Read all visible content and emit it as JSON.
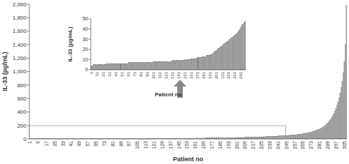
{
  "chart_data": [
    {
      "type": "bar",
      "y_label": "IL-33 (pg/mL)",
      "x_label": "Patient no",
      "color": "#a0a0a0",
      "ylim": [
        0,
        2000
      ],
      "yticks": [
        0,
        200,
        400,
        600,
        800,
        {
          "value": 1000,
          "label": "1,000"
        },
        {
          "value": 1200,
          "label": "1,200"
        },
        {
          "value": 1400,
          "label": "1,400"
        },
        {
          "value": 1600,
          "label": "1,600"
        },
        {
          "value": 1800,
          "label": "1,800"
        },
        {
          "value": 2000,
          "label": "2,000"
        }
      ],
      "grid": false,
      "categories": [
        "1",
        null,
        null,
        null,
        null,
        null,
        null,
        null,
        "9",
        null,
        null,
        null,
        null,
        null,
        null,
        null,
        "17",
        null,
        null,
        null,
        null,
        null,
        null,
        null,
        "25",
        null,
        null,
        null,
        null,
        null,
        null,
        null,
        "33",
        null,
        null,
        null,
        null,
        null,
        null,
        null,
        "41",
        null,
        null,
        null,
        null,
        null,
        null,
        null,
        "49",
        null,
        null,
        null,
        null,
        null,
        null,
        null,
        "57",
        null,
        null,
        null,
        null,
        null,
        null,
        null,
        "65",
        null,
        null,
        null,
        null,
        null,
        null,
        null,
        "73",
        null,
        null,
        null,
        null,
        null,
        null,
        null,
        "81",
        null,
        null,
        null,
        null,
        null,
        null,
        null,
        "89",
        null,
        null,
        null,
        null,
        null,
        null,
        null,
        "97",
        null,
        null,
        null,
        null,
        null,
        null,
        null,
        "105",
        null,
        null,
        null,
        null,
        null,
        null,
        null,
        "113",
        null,
        null,
        null,
        null,
        null,
        null,
        null,
        "121",
        null,
        null,
        null,
        null,
        null,
        null,
        null,
        "129",
        null,
        null,
        null,
        null,
        null,
        null,
        null,
        "137",
        null,
        null,
        null,
        null,
        null,
        null,
        null,
        "145",
        null,
        null,
        null,
        null,
        null,
        null,
        null,
        "153",
        null,
        null,
        null,
        null,
        null,
        null,
        null,
        "161",
        null,
        null,
        null,
        null,
        null,
        null,
        null,
        "169",
        null,
        null,
        null,
        null,
        null,
        null,
        null,
        "177",
        null,
        null,
        null,
        null,
        null,
        null,
        null,
        "185",
        null,
        null,
        null,
        null,
        null,
        null,
        null,
        "193",
        null,
        null,
        null,
        null,
        null,
        null,
        null,
        "201",
        null,
        null,
        null,
        null,
        null,
        null,
        null,
        "209",
        null,
        null,
        null,
        null,
        null,
        null,
        null,
        "217",
        null,
        null,
        null,
        null,
        null,
        null,
        null,
        "225",
        null,
        null,
        null,
        null,
        null,
        null,
        null,
        "233",
        null,
        null,
        null,
        null,
        null,
        null,
        null,
        "241",
        null,
        null,
        null,
        null,
        null,
        null,
        null,
        "249",
        null,
        null,
        null,
        null,
        null,
        null,
        null,
        "257",
        null,
        null,
        null,
        null,
        null,
        null,
        null,
        "265",
        null,
        null,
        null,
        null,
        null,
        null,
        null,
        "273",
        null,
        null,
        null,
        null,
        null,
        null,
        null,
        "281",
        null,
        null,
        null,
        null,
        null,
        null,
        null,
        "289",
        null,
        null,
        null,
        null,
        null,
        null,
        null,
        "297",
        null,
        null,
        null,
        null,
        null,
        null,
        null,
        "305",
        null,
        null
      ],
      "values": [
        4,
        4,
        4,
        4,
        5,
        5,
        5,
        5,
        5,
        5,
        5,
        5,
        5,
        5,
        5,
        5,
        5,
        5,
        5,
        5,
        5,
        5,
        5,
        5,
        5,
        6,
        6,
        6,
        6,
        6,
        6,
        6,
        6,
        6,
        6,
        6,
        6,
        6,
        6,
        6,
        6,
        6,
        6,
        6,
        6,
        6,
        6,
        6,
        6,
        6,
        6,
        6,
        6,
        6,
        6,
        6,
        6,
        6,
        6,
        6,
        7,
        7,
        7,
        7,
        7,
        7,
        7,
        7,
        7,
        7,
        7,
        7,
        7,
        7,
        7,
        7,
        7,
        7,
        7,
        7,
        7,
        7,
        7,
        7,
        7,
        7,
        7,
        7,
        7,
        7,
        7,
        7,
        7,
        7,
        7,
        7,
        7,
        7,
        7,
        7,
        8,
        8,
        8,
        8,
        8,
        8,
        8,
        8,
        8,
        8,
        8,
        8,
        8,
        8,
        8,
        8,
        8,
        8,
        8,
        8,
        8,
        8,
        8,
        8,
        8,
        8,
        8,
        8,
        8,
        8,
        9,
        9,
        9,
        9,
        9,
        9,
        9,
        9,
        9,
        9,
        9,
        9,
        9,
        9,
        9,
        9,
        9,
        9,
        9,
        9,
        10,
        10,
        10,
        10,
        10,
        10,
        10,
        10,
        10,
        10,
        11,
        11,
        11,
        11,
        11,
        11,
        11,
        11,
        11,
        11,
        12,
        12,
        12,
        12,
        12,
        12,
        12,
        12,
        13,
        13,
        13,
        13,
        13,
        13,
        13,
        14,
        14,
        14,
        14,
        14,
        15,
        15,
        15,
        15,
        15,
        16,
        17,
        17,
        18,
        18,
        19,
        19,
        20,
        20,
        21,
        21,
        22,
        22,
        23,
        23,
        24,
        24,
        25,
        25,
        26,
        26,
        27,
        27,
        28,
        28,
        29,
        29,
        30,
        30,
        31,
        31,
        32,
        32,
        33,
        33,
        34,
        34,
        35,
        35,
        36,
        37,
        38,
        39,
        40,
        41,
        42,
        43,
        44,
        44,
        45,
        46,
        47,
        48,
        50,
        51,
        52,
        53,
        54,
        55,
        56,
        57,
        58,
        60,
        62,
        64,
        66,
        68,
        70,
        72,
        75,
        78,
        81,
        84,
        87,
        90,
        94,
        98,
        102,
        106,
        110,
        115,
        120,
        126,
        132,
        138,
        145,
        152,
        160,
        170,
        180,
        192,
        205,
        220,
        236,
        254,
        274,
        296,
        320,
        348,
        380,
        415,
        455,
        500,
        550,
        610,
        680,
        760,
        860,
        980,
        1150,
        1400,
        1980
      ]
    },
    {
      "type": "bar",
      "y_label": "IL-33 (pg/mL)",
      "x_label": "Patient no",
      "color": "#a0a0a0",
      "ylim": [
        0,
        50
      ],
      "yticks": [
        0,
        10,
        20,
        30,
        40,
        50
      ],
      "grid": false,
      "categories": [
        "1",
        null,
        null,
        null,
        null,
        null,
        null,
        null,
        null,
        null,
        "11",
        null,
        null,
        null,
        null,
        null,
        null,
        null,
        null,
        null,
        "21",
        null,
        null,
        null,
        null,
        null,
        null,
        null,
        null,
        null,
        "31",
        null,
        null,
        null,
        null,
        null,
        null,
        null,
        null,
        null,
        "41",
        null,
        null,
        null,
        null,
        null,
        null,
        null,
        null,
        null,
        "51",
        null,
        null,
        null,
        null,
        null,
        null,
        null,
        null,
        null,
        "61",
        null,
        null,
        null,
        null,
        null,
        null,
        null,
        null,
        null,
        "71",
        null,
        null,
        null,
        null,
        null,
        null,
        null,
        null,
        null,
        "81",
        null,
        null,
        null,
        null,
        null,
        null,
        null,
        null,
        null,
        "91",
        null,
        null,
        null,
        null,
        null,
        null,
        null,
        null,
        null,
        "101",
        null,
        null,
        null,
        null,
        null,
        null,
        null,
        null,
        null,
        "111",
        null,
        null,
        null,
        null,
        null,
        null,
        null,
        null,
        null,
        "121",
        null,
        null,
        null,
        null,
        null,
        null,
        null,
        null,
        null,
        "131",
        null,
        null,
        null,
        null,
        null,
        null,
        null,
        null,
        null,
        "141",
        null,
        null,
        null,
        null,
        null,
        null,
        null,
        null,
        null,
        "151",
        null,
        null,
        null,
        null,
        null,
        null,
        null,
        null,
        null,
        "161",
        null,
        null,
        null,
        null,
        null,
        null,
        null,
        null,
        null,
        "171",
        null,
        null,
        null,
        null,
        null,
        null,
        null,
        null,
        null,
        "181",
        null,
        null,
        null,
        null,
        null,
        null,
        null,
        null,
        null,
        "191",
        null,
        null,
        null,
        null,
        null,
        null,
        null,
        null,
        null,
        "201",
        null,
        null,
        null,
        null,
        null,
        null,
        null,
        null,
        null,
        "211",
        null,
        null,
        null,
        null,
        null,
        null,
        null,
        null,
        null,
        "221",
        null,
        null,
        null,
        null,
        null,
        null,
        null,
        null,
        null,
        "231",
        null,
        null,
        null,
        null,
        null,
        null,
        null,
        null,
        null,
        "241",
        null,
        null,
        null,
        null,
        null,
        null,
        null
      ],
      "values": [
        4,
        4,
        4,
        4,
        5,
        5,
        5,
        5,
        5,
        5,
        5,
        5,
        5,
        5,
        5,
        5,
        5,
        5,
        5,
        5,
        5,
        5,
        5,
        5,
        5,
        6,
        6,
        6,
        6,
        6,
        6,
        6,
        6,
        6,
        6,
        6,
        6,
        6,
        6,
        6,
        6,
        6,
        6,
        6,
        6,
        6,
        6,
        6,
        6,
        6,
        6,
        6,
        6,
        6,
        6,
        6,
        6,
        6,
        6,
        6,
        7,
        7,
        7,
        7,
        7,
        7,
        7,
        7,
        7,
        7,
        7,
        7,
        7,
        7,
        7,
        7,
        7,
        7,
        7,
        7,
        7,
        7,
        7,
        7,
        7,
        7,
        7,
        7,
        7,
        7,
        7,
        7,
        7,
        7,
        7,
        7,
        7,
        7,
        7,
        7,
        8,
        8,
        8,
        8,
        8,
        8,
        8,
        8,
        8,
        8,
        8,
        8,
        8,
        8,
        8,
        8,
        8,
        8,
        8,
        8,
        8,
        8,
        8,
        8,
        8,
        8,
        8,
        8,
        8,
        8,
        9,
        9,
        9,
        9,
        9,
        9,
        9,
        9,
        9,
        9,
        9,
        9,
        9,
        9,
        9,
        9,
        9,
        9,
        9,
        9,
        10,
        10,
        10,
        10,
        10,
        10,
        10,
        10,
        10,
        10,
        11,
        11,
        11,
        11,
        11,
        11,
        11,
        11,
        11,
        11,
        12,
        12,
        12,
        12,
        12,
        12,
        12,
        12,
        13,
        13,
        13,
        13,
        13,
        13,
        13,
        14,
        14,
        14,
        14,
        14,
        15,
        15,
        15,
        15,
        15,
        16,
        17,
        17,
        18,
        18,
        19,
        19,
        20,
        20,
        21,
        21,
        22,
        22,
        23,
        23,
        24,
        24,
        25,
        25,
        26,
        26,
        27,
        27,
        28,
        28,
        29,
        29,
        30,
        30,
        31,
        31,
        32,
        32,
        33,
        33,
        34,
        34,
        35,
        35,
        36,
        37,
        38,
        39,
        40,
        41,
        42,
        43,
        44,
        44,
        45,
        46,
        47,
        48
      ]
    }
  ]
}
